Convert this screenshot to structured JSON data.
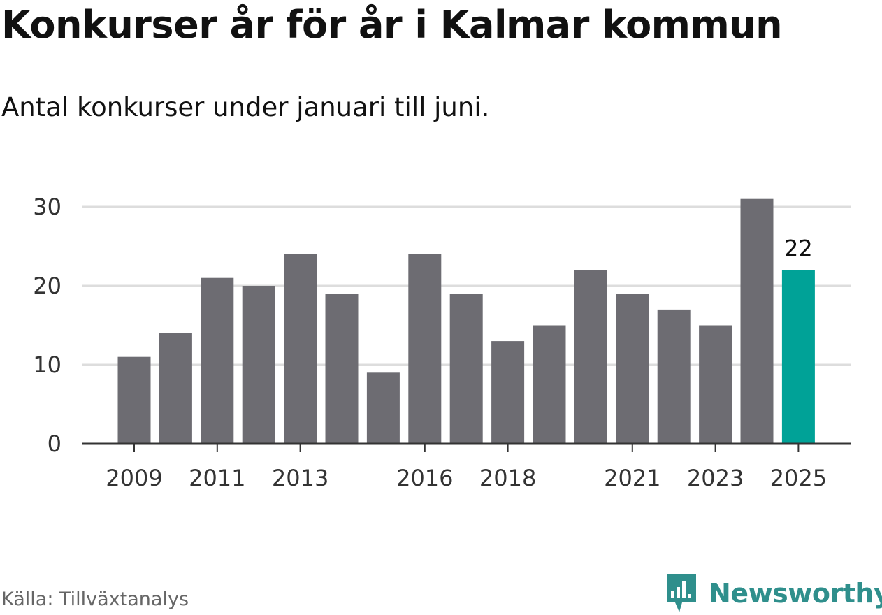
{
  "title": "Konkurser år för år i Kalmar kommun",
  "subtitle": "Antal konkurser under januari till juni.",
  "source": "Källa: Tillväxtanalys",
  "brand": "Newsworthy",
  "colors": {
    "bar": "#6d6c72",
    "highlight": "#00a297",
    "grid": "#dddddd",
    "axis": "#333333",
    "brand": "#2f8f8c"
  },
  "chart_data": {
    "type": "bar",
    "title": "Konkurser år för år i Kalmar kommun",
    "subtitle": "Antal konkurser under januari till juni.",
    "categories": [
      "2009",
      "2010",
      "2011",
      "2012",
      "2013",
      "2014",
      "2015",
      "2016",
      "2017",
      "2018",
      "2019",
      "2020",
      "2021",
      "2022",
      "2023",
      "2024",
      "2025"
    ],
    "values": [
      11,
      14,
      21,
      20,
      24,
      19,
      9,
      24,
      19,
      13,
      15,
      22,
      19,
      17,
      15,
      31,
      22
    ],
    "highlight": "2025",
    "highlight_label": "22",
    "x_tick_labels": [
      "2009",
      "2011",
      "2013",
      "2016",
      "2018",
      "2021",
      "2023",
      "2025"
    ],
    "y_ticks": [
      0,
      10,
      20,
      30
    ],
    "ylim": [
      0,
      30
    ],
    "xlabel": "",
    "ylabel": "",
    "grid": true,
    "legend": "none"
  }
}
